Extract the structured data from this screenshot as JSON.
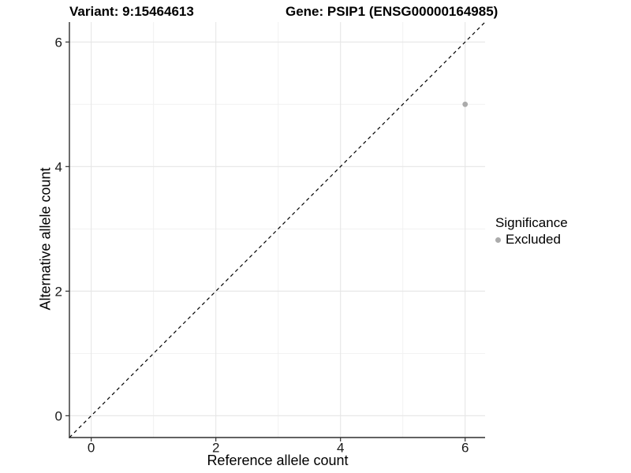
{
  "chart_data": {
    "type": "scatter",
    "title_left": "Variant: 9:15464613",
    "title_right": "Gene: PSIP1 (ENSG00000164985)",
    "xlabel": "Reference allele count",
    "ylabel": "Alternative allele count",
    "xlim": [
      -0.35,
      6.32
    ],
    "ylim": [
      -0.35,
      6.32
    ],
    "xticks": [
      0,
      2,
      4,
      6
    ],
    "yticks": [
      0,
      2,
      4,
      6
    ],
    "x_minor_ticks": [
      1,
      3,
      5
    ],
    "y_minor_ticks": [
      1,
      3,
      5
    ],
    "grid": "major+minor",
    "series": [
      {
        "name": "Excluded",
        "color": "#ababab",
        "points": [
          {
            "x": 6,
            "y": 5
          }
        ]
      }
    ],
    "reference_line": {
      "type": "abline",
      "slope": 1,
      "intercept": 0,
      "linetype": "dashed",
      "color": "#000000"
    },
    "legend": {
      "title": "Significance",
      "position": "right",
      "items": [
        {
          "label": "Excluded",
          "color": "#ababab"
        }
      ]
    },
    "colors": {
      "background": "#ffffff",
      "grid_major": "#e6e6e6",
      "grid_minor": "#f1f1f1",
      "axis_line": "#2f2f2f",
      "tick_text": "#1a1a1a"
    }
  }
}
